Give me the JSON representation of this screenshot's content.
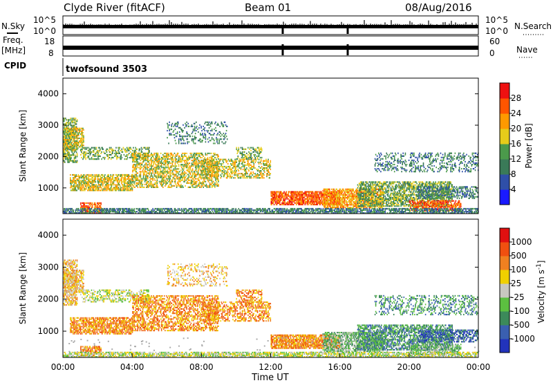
{
  "header": {
    "station": "Clyde River (fitACF)",
    "beam": "Beam 01",
    "date": "08/Aug/2016"
  },
  "status_panels": {
    "nsky_label": "N.Sky",
    "nsky_ticks": [
      "10^5",
      "10^0"
    ],
    "nsearch_label": "N.Search",
    "nsearch_ticks": [
      "10^5",
      "10^0"
    ],
    "freq_label_1": "Freq.",
    "freq_label_2": "[MHz]",
    "freq_ticks": [
      "18",
      "8"
    ],
    "nave_label": "Nave",
    "nave_ticks": [
      "60",
      "0"
    ],
    "cpid_label": "CPID",
    "cpid_value": "twofsound 3503"
  },
  "chart_data": [
    {
      "type": "heatmap",
      "name": "power",
      "ylabel": "Slant Range [km]",
      "ylim": [
        180,
        4500
      ],
      "xlim": [
        0,
        24
      ],
      "y_ticks": [
        "1000",
        "2000",
        "3000",
        "4000"
      ],
      "colorbar": {
        "label": "Power [dB]",
        "range": [
          0,
          32
        ],
        "ticks": [
          "4",
          "8",
          "12",
          "16",
          "20",
          "24",
          "28"
        ],
        "colors": [
          "#1a1aff",
          "#2f4fa8",
          "#3a7a58",
          "#4b9a4b",
          "#e6cc1a",
          "#ff9900",
          "#ff5500",
          "#ee1111"
        ]
      }
    },
    {
      "type": "heatmap",
      "name": "velocity",
      "ylabel": "Slant Range [km]",
      "ylim": [
        180,
        4500
      ],
      "xlim": [
        0,
        24
      ],
      "y_ticks": [
        "1000",
        "2000",
        "3000",
        "4000"
      ],
      "xlabel": "Time UT",
      "x_ticks": [
        "00:00",
        "04:00",
        "08:00",
        "12:00",
        "16:00",
        "20:00",
        "00:00"
      ],
      "colorbar": {
        "label": "Velocity [m s",
        "label_sup": "-1",
        "label_end": "]",
        "ticks": [
          "1000",
          "500",
          "100",
          "25",
          "-25",
          "-100",
          "-500",
          "-1000"
        ],
        "colors": [
          "#2233bb",
          "#3a5fb0",
          "#3c8a5a",
          "#5cc040",
          "#c8c8c0",
          "#f0d000",
          "#f08020",
          "#f05010",
          "#e01010"
        ]
      }
    }
  ],
  "colors": {
    "power_scale": [
      "#1a1aff",
      "#2f4fa8",
      "#3a7a58",
      "#4b9a4b",
      "#e6cc1a",
      "#ff9900",
      "#ff5500",
      "#ee1111"
    ],
    "velocity_scale": [
      "#2233bb",
      "#3a5fb0",
      "#3c8a5a",
      "#5cc040",
      "#c8c8c0",
      "#f0d000",
      "#f08020",
      "#f05010",
      "#e01010"
    ],
    "ground_scatter": "#aaaaaa"
  }
}
